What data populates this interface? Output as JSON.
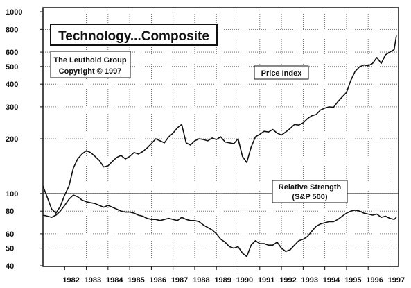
{
  "chart_data": {
    "type": "line",
    "title": "Technology...Composite",
    "source": "The Leuthold Group",
    "copyright": "Copyright © 1997",
    "yscale": "log",
    "ylim": [
      40,
      1000
    ],
    "y_ticks": [
      1000,
      800,
      600,
      500,
      400,
      300,
      200,
      100,
      80,
      60,
      50,
      40
    ],
    "x_ticks": [
      "1982",
      "1983",
      "1984",
      "1985",
      "1986",
      "1987",
      "1988",
      "1989",
      "1990",
      "1991",
      "1992",
      "1993",
      "1994",
      "1995",
      "1996",
      "1997"
    ],
    "grid": true,
    "series": [
      {
        "name": "Price Index",
        "x": [
          1981.0,
          1981.2,
          1981.4,
          1981.6,
          1981.8,
          1982.0,
          1982.2,
          1982.4,
          1982.6,
          1982.8,
          1983.0,
          1983.2,
          1983.4,
          1983.6,
          1983.8,
          1984.0,
          1984.2,
          1984.4,
          1984.6,
          1984.8,
          1985.0,
          1985.2,
          1985.4,
          1985.6,
          1985.8,
          1986.0,
          1986.2,
          1986.4,
          1986.6,
          1986.8,
          1987.0,
          1987.2,
          1987.4,
          1987.6,
          1987.8,
          1988.0,
          1988.2,
          1988.4,
          1988.6,
          1988.8,
          1989.0,
          1989.2,
          1989.4,
          1989.6,
          1989.8,
          1990.0,
          1990.2,
          1990.4,
          1990.6,
          1990.8,
          1991.0,
          1991.2,
          1991.4,
          1991.6,
          1991.8,
          1992.0,
          1992.2,
          1992.4,
          1992.6,
          1992.8,
          1993.0,
          1993.2,
          1993.4,
          1993.6,
          1993.8,
          1994.0,
          1994.2,
          1994.4,
          1994.6,
          1994.8,
          1995.0,
          1995.2,
          1995.4,
          1995.6,
          1995.8,
          1996.0,
          1996.2,
          1996.4,
          1996.6,
          1996.8,
          1997.0,
          1997.2,
          1997.3
        ],
        "values": [
          110,
          95,
          82,
          78,
          85,
          98,
          110,
          138,
          155,
          165,
          172,
          168,
          160,
          152,
          140,
          142,
          150,
          158,
          162,
          155,
          160,
          168,
          165,
          170,
          178,
          188,
          200,
          195,
          190,
          205,
          215,
          230,
          240,
          190,
          185,
          195,
          200,
          198,
          195,
          202,
          198,
          205,
          192,
          190,
          188,
          200,
          160,
          148,
          180,
          205,
          212,
          220,
          218,
          225,
          215,
          210,
          218,
          228,
          240,
          238,
          245,
          258,
          268,
          272,
          288,
          295,
          300,
          298,
          320,
          340,
          360,
          420,
          470,
          498,
          510,
          505,
          520,
          560,
          520,
          580,
          600,
          620,
          740
        ]
      },
      {
        "name": "Relative Strength (S&P 500)",
        "x": [
          1981.0,
          1981.2,
          1981.4,
          1981.6,
          1981.8,
          1982.0,
          1982.2,
          1982.4,
          1982.6,
          1982.8,
          1983.0,
          1983.2,
          1983.4,
          1983.6,
          1983.8,
          1984.0,
          1984.2,
          1984.4,
          1984.6,
          1984.8,
          1985.0,
          1985.2,
          1985.4,
          1985.6,
          1985.8,
          1986.0,
          1986.2,
          1986.4,
          1986.6,
          1986.8,
          1987.0,
          1987.2,
          1987.4,
          1987.6,
          1987.8,
          1988.0,
          1988.2,
          1988.4,
          1988.6,
          1988.8,
          1989.0,
          1989.2,
          1989.4,
          1989.6,
          1989.8,
          1990.0,
          1990.2,
          1990.4,
          1990.6,
          1990.8,
          1991.0,
          1991.2,
          1991.4,
          1991.6,
          1991.8,
          1992.0,
          1992.2,
          1992.4,
          1992.6,
          1992.8,
          1993.0,
          1993.2,
          1993.4,
          1993.6,
          1993.8,
          1994.0,
          1994.2,
          1994.4,
          1994.6,
          1994.8,
          1995.0,
          1995.2,
          1995.4,
          1995.6,
          1995.8,
          1996.0,
          1996.2,
          1996.4,
          1996.6,
          1996.8,
          1997.0,
          1997.2,
          1997.3
        ],
        "values": [
          76,
          75,
          74,
          76,
          80,
          86,
          93,
          98,
          96,
          92,
          90,
          89,
          88,
          86,
          84,
          86,
          84,
          82,
          80,
          79,
          79,
          78,
          76,
          75,
          73,
          72,
          72,
          71,
          72,
          73,
          72,
          71,
          74,
          72,
          71,
          71,
          70,
          67,
          65,
          63,
          60,
          56,
          54,
          51,
          50,
          51,
          47,
          45,
          52,
          55,
          53,
          53,
          52,
          52,
          54,
          50,
          48,
          49,
          52,
          55,
          56,
          58,
          62,
          66,
          68,
          69,
          70,
          70,
          72,
          75,
          78,
          80,
          81,
          80,
          78,
          77,
          76,
          77,
          74,
          75,
          73,
          72,
          74
        ]
      }
    ],
    "annotations": [
      "Price Index",
      "Relative Strength",
      "(S&P 500)"
    ]
  }
}
